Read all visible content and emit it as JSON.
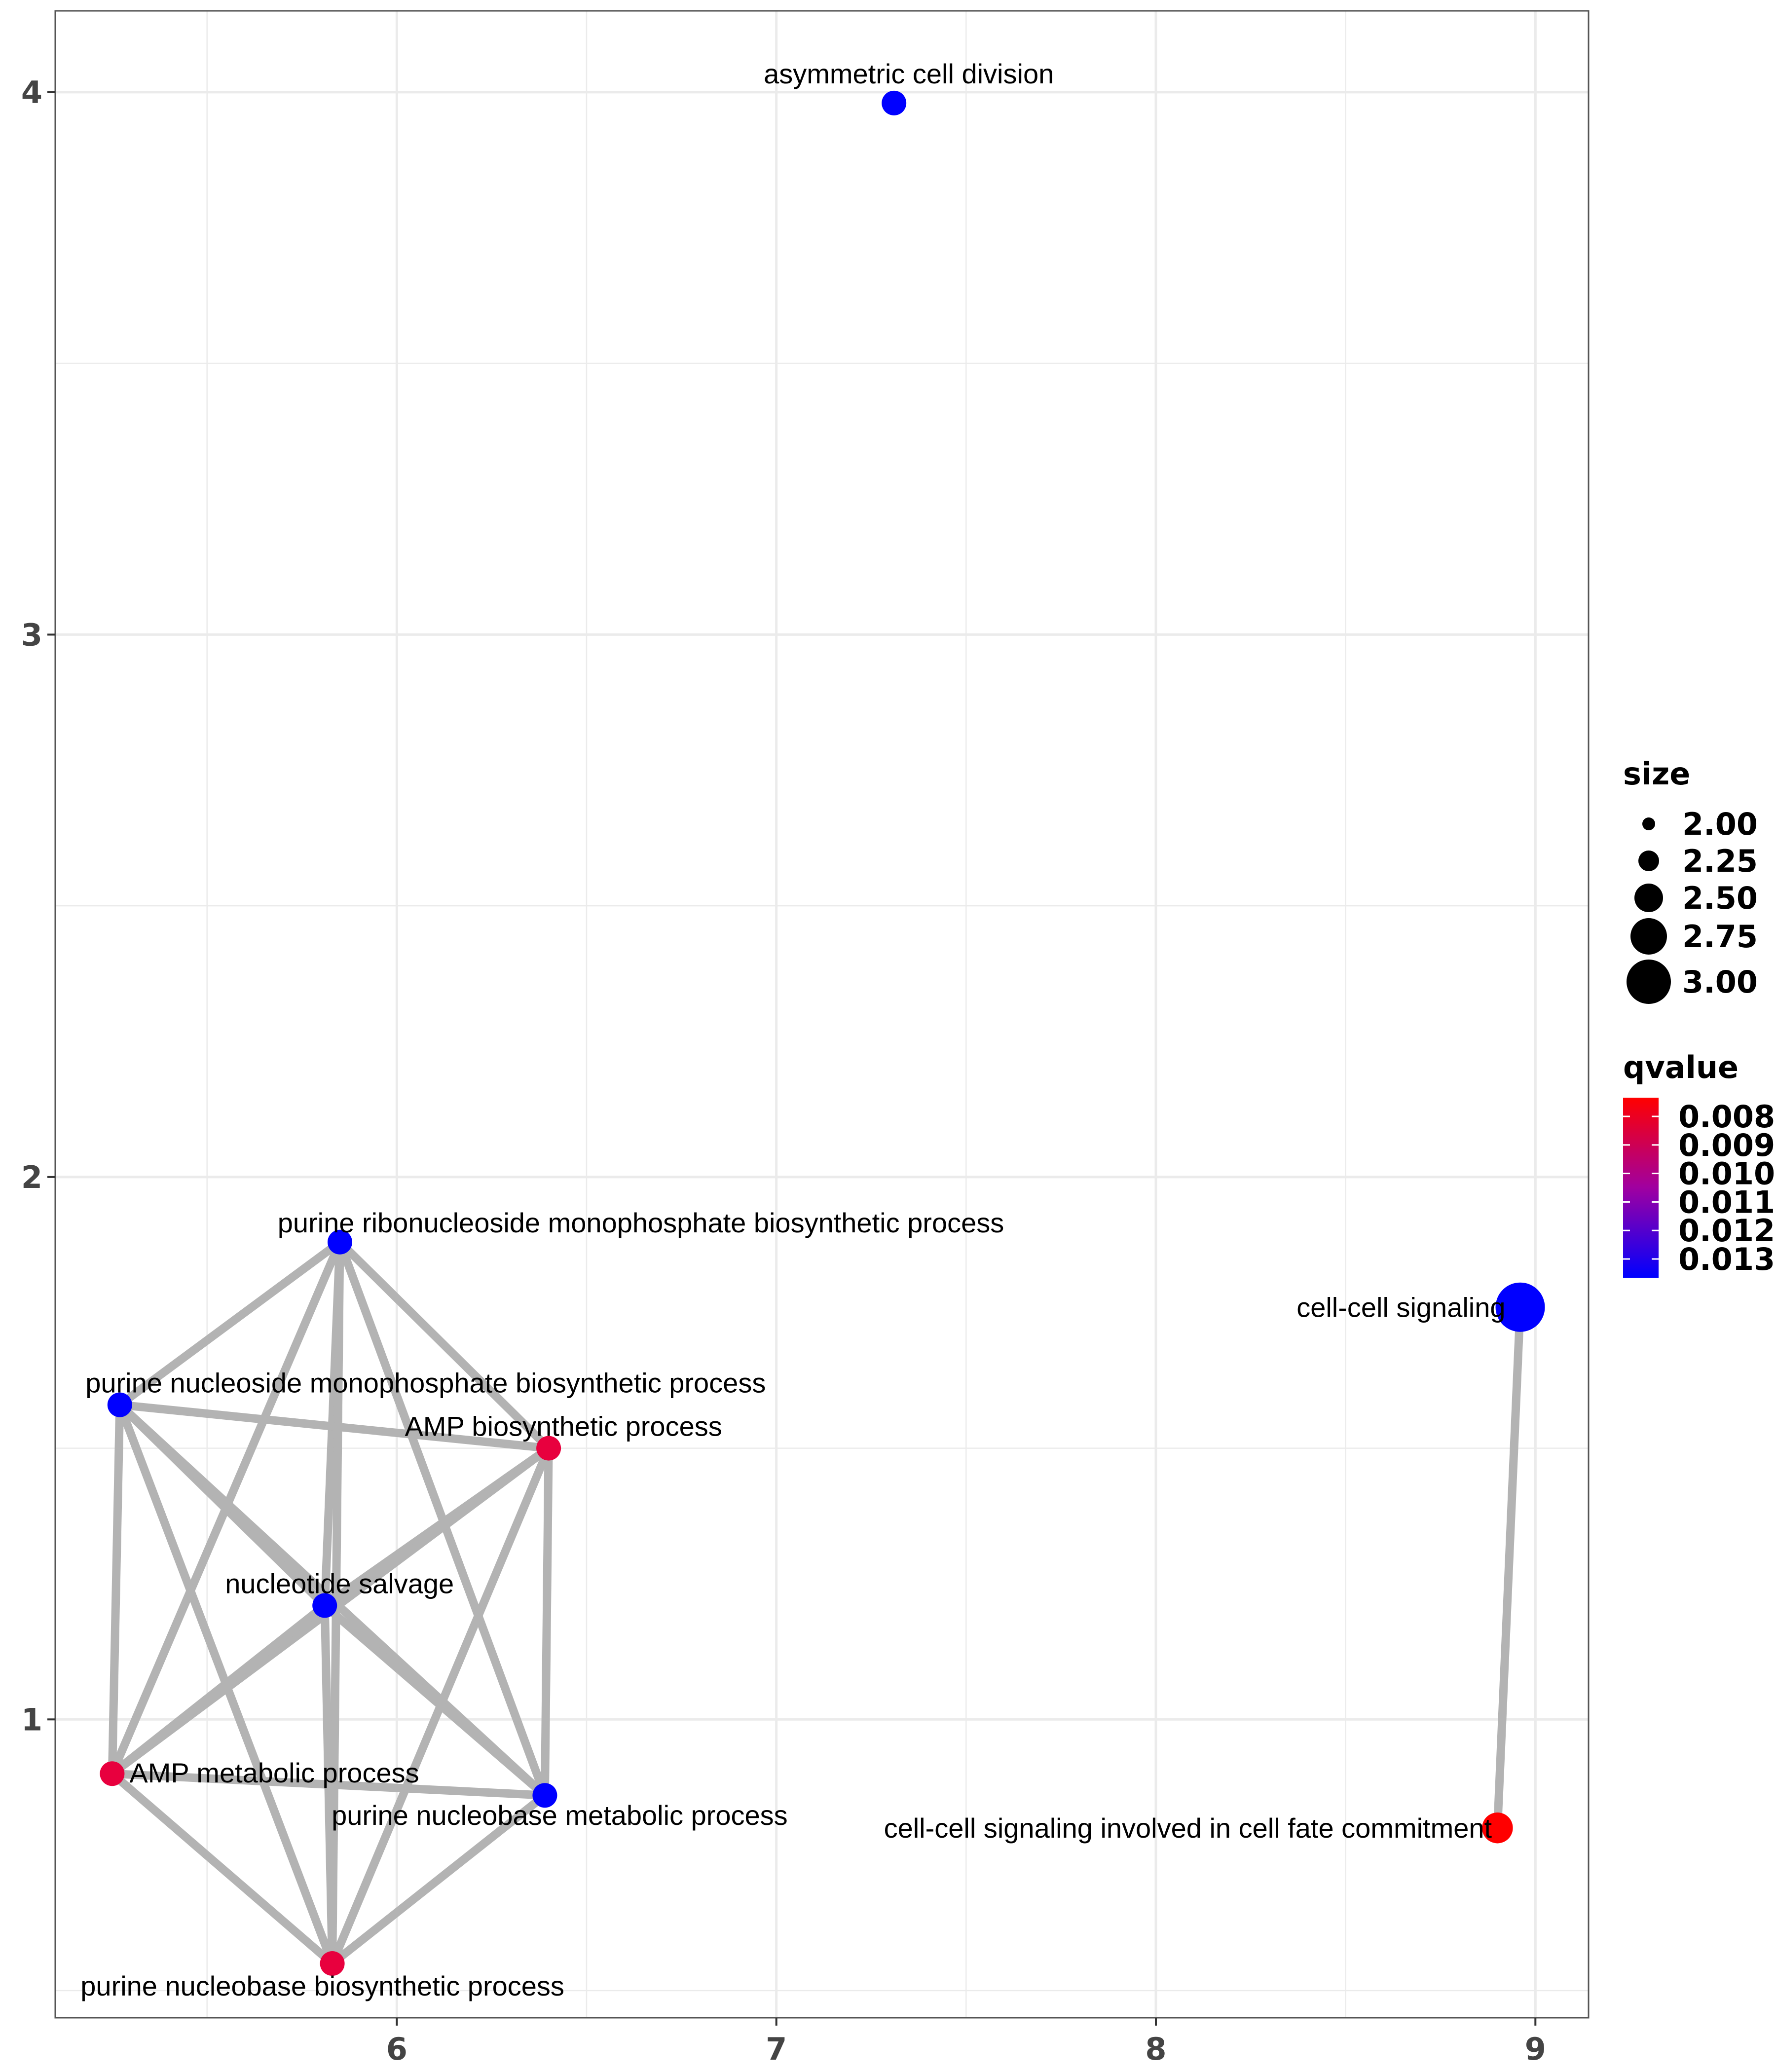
{
  "chart_data": {
    "type": "scatter",
    "title": "",
    "xlabel": "",
    "ylabel": "",
    "xlim": [
      5.1,
      9.14
    ],
    "ylim": [
      0.45,
      4.15
    ],
    "x_ticks": [
      6,
      7,
      8,
      9
    ],
    "x_tick_labels": [
      "6",
      "7",
      "8",
      "9"
    ],
    "y_ticks": [
      1,
      2,
      3,
      4
    ],
    "y_tick_labels": [
      "1",
      "2",
      "3",
      "4"
    ],
    "grid": true,
    "nodes": [
      {
        "id": "asym",
        "label": "asymmetric cell division",
        "x": 7.31,
        "y": 3.98,
        "size": 2.0,
        "qvalue": 0.013,
        "color": "#0000FF",
        "label_pos": "above"
      },
      {
        "id": "prmbp",
        "label": "purine ribonucleoside monophosphate biosynthetic process",
        "x": 5.85,
        "y": 1.88,
        "size": 2.0,
        "qvalue": 0.013,
        "color": "#0000FF",
        "label_pos": "above"
      },
      {
        "id": "pnmbp",
        "label": "purine nucleoside monophosphate biosynthetic process",
        "x": 5.27,
        "y": 1.58,
        "size": 2.0,
        "qvalue": 0.013,
        "color": "#0000FF",
        "label_pos": "above-right"
      },
      {
        "id": "ampbp",
        "label": "AMP biosynthetic process",
        "x": 6.4,
        "y": 1.5,
        "size": 2.0,
        "qvalue": 0.0085,
        "color": "#E8003E",
        "label_pos": "above"
      },
      {
        "id": "nsalv",
        "label": "nucleotide salvage",
        "x": 5.81,
        "y": 1.21,
        "size": 2.0,
        "qvalue": 0.013,
        "color": "#0000FF",
        "label_pos": "above"
      },
      {
        "id": "ampmp",
        "label": "AMP metabolic process",
        "x": 5.25,
        "y": 0.9,
        "size": 2.0,
        "qvalue": 0.0085,
        "color": "#E8003E",
        "label_pos": "right"
      },
      {
        "id": "pnbmp",
        "label": "purine nucleobase metabolic process",
        "x": 6.39,
        "y": 0.86,
        "size": 2.0,
        "qvalue": 0.013,
        "color": "#0000FF",
        "label_pos": "below"
      },
      {
        "id": "pnbbp",
        "label": "purine nucleobase biosynthetic process",
        "x": 5.83,
        "y": 0.55,
        "size": 2.0,
        "qvalue": 0.0085,
        "color": "#E8003E",
        "label_pos": "below"
      },
      {
        "id": "ccs",
        "label": "cell-cell signaling",
        "x": 8.96,
        "y": 1.76,
        "size": 3.0,
        "qvalue": 0.013,
        "color": "#0000FF",
        "label_pos": "left"
      },
      {
        "id": "ccsf",
        "label": "cell-cell signaling involved in cell fate commitment",
        "x": 8.9,
        "y": 0.8,
        "size": 2.25,
        "qvalue": 0.008,
        "color": "#FF0000",
        "label_pos": "left"
      }
    ],
    "edges": [
      [
        "prmbp",
        "pnmbp"
      ],
      [
        "prmbp",
        "ampbp"
      ],
      [
        "prmbp",
        "nsalv"
      ],
      [
        "prmbp",
        "ampmp"
      ],
      [
        "prmbp",
        "pnbmp"
      ],
      [
        "prmbp",
        "pnbbp"
      ],
      [
        "pnmbp",
        "ampbp"
      ],
      [
        "pnmbp",
        "nsalv"
      ],
      [
        "pnmbp",
        "ampmp"
      ],
      [
        "pnmbp",
        "pnbmp"
      ],
      [
        "pnmbp",
        "pnbbp"
      ],
      [
        "ampbp",
        "nsalv"
      ],
      [
        "ampbp",
        "ampmp"
      ],
      [
        "ampbp",
        "pnbmp"
      ],
      [
        "ampbp",
        "pnbbp"
      ],
      [
        "nsalv",
        "ampmp"
      ],
      [
        "nsalv",
        "pnbmp"
      ],
      [
        "nsalv",
        "pnbbp"
      ],
      [
        "ampmp",
        "pnbmp"
      ],
      [
        "ampmp",
        "pnbbp"
      ],
      [
        "pnbmp",
        "pnbbp"
      ],
      [
        "ccs",
        "ccsf"
      ]
    ],
    "legend": {
      "placement": "right",
      "size": {
        "title": "size",
        "entries": [
          {
            "label": "2.00",
            "value": 2.0
          },
          {
            "label": "2.25",
            "value": 2.25
          },
          {
            "label": "2.50",
            "value": 2.5
          },
          {
            "label": "2.75",
            "value": 2.75
          },
          {
            "label": "3.00",
            "value": 3.0
          }
        ]
      },
      "qvalue": {
        "title": "qvalue",
        "range": [
          0.008,
          0.013
        ],
        "labels": [
          "0.008",
          "0.009",
          "0.010",
          "0.011",
          "0.012",
          "0.013"
        ],
        "color_low": "#FF0000",
        "color_high": "#0000FF"
      }
    },
    "colors": {
      "edge": "#B3B3B3",
      "grid": "#EBEBEB",
      "panel_border": "#555555"
    }
  }
}
